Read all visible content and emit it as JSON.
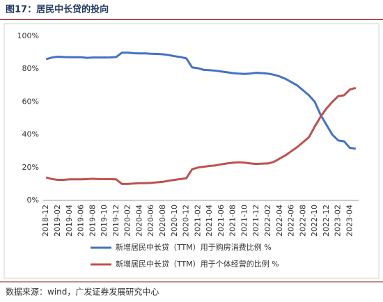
{
  "chart_data": {
    "type": "line",
    "title": "图17：居民中长贷的投向",
    "source": "数据来源：wind，广发证券发展研究中心",
    "categories": [
      "2018-12",
      null,
      "2019-02",
      null,
      "2019-04",
      null,
      "2019-06",
      null,
      "2019-08",
      null,
      "2019-10",
      null,
      "2019-12",
      null,
      "2020-02",
      null,
      "2020-04",
      null,
      "2020-06",
      null,
      "2020-08",
      null,
      "2020-10",
      null,
      "2020-12",
      null,
      "2021-02",
      null,
      "2021-04",
      null,
      "2021-06",
      null,
      "2021-08",
      null,
      "2021-10",
      null,
      "2021-12",
      null,
      "2022-02",
      null,
      "2022-04",
      null,
      "2022-06",
      null,
      "2022-08",
      null,
      "2022-10",
      null,
      "2022-12",
      null,
      "2023-02",
      null,
      "2023-04",
      null
    ],
    "series": [
      {
        "name": "新增居民中长贷（TTM）用于购房消费比例 %",
        "color": "#4472c4",
        "values": [
          86,
          87,
          87.5,
          87.3,
          87.2,
          87.2,
          87.2,
          86.8,
          87,
          87,
          87,
          87.1,
          87.3,
          90,
          90,
          89.6,
          89.5,
          89.5,
          89.3,
          89.2,
          89,
          88.5,
          87.8,
          87.3,
          86.5,
          81,
          80.5,
          79.5,
          79.3,
          79,
          78.5,
          78,
          77.5,
          77.2,
          77,
          77.3,
          77.7,
          77.5,
          77.2,
          76.5,
          75.5,
          74,
          72,
          70,
          67,
          64,
          60,
          52,
          46,
          40,
          36.5,
          36,
          32,
          31.5
        ]
      },
      {
        "name": "新增居民中长贷（TTM）用于个体经营的比例 %",
        "color": "#c0504d",
        "values": [
          14,
          13,
          12.5,
          12.5,
          12.8,
          12.8,
          12.8,
          13,
          13.2,
          13,
          13,
          13,
          12.8,
          10,
          10,
          10.3,
          10.5,
          10.5,
          10.7,
          11,
          11.3,
          12,
          12.5,
          13,
          13.5,
          19,
          20,
          20.5,
          21,
          21.3,
          22,
          22.5,
          23,
          23.2,
          23,
          22.5,
          22.2,
          22.4,
          22.5,
          23.5,
          25.5,
          27.5,
          30,
          32.5,
          35.5,
          38.5,
          45,
          51,
          56,
          60,
          63.5,
          64,
          67.5,
          68.5
        ]
      }
    ],
    "ylim": [
      0,
      100
    ],
    "yticks": [
      {
        "value": 0,
        "label": "0%"
      },
      {
        "value": 20,
        "label": "20%"
      },
      {
        "value": 40,
        "label": "40%"
      },
      {
        "value": 60,
        "label": "60%"
      },
      {
        "value": 80,
        "label": "80%"
      },
      {
        "value": 100,
        "label": "100%"
      }
    ],
    "grid": false
  }
}
